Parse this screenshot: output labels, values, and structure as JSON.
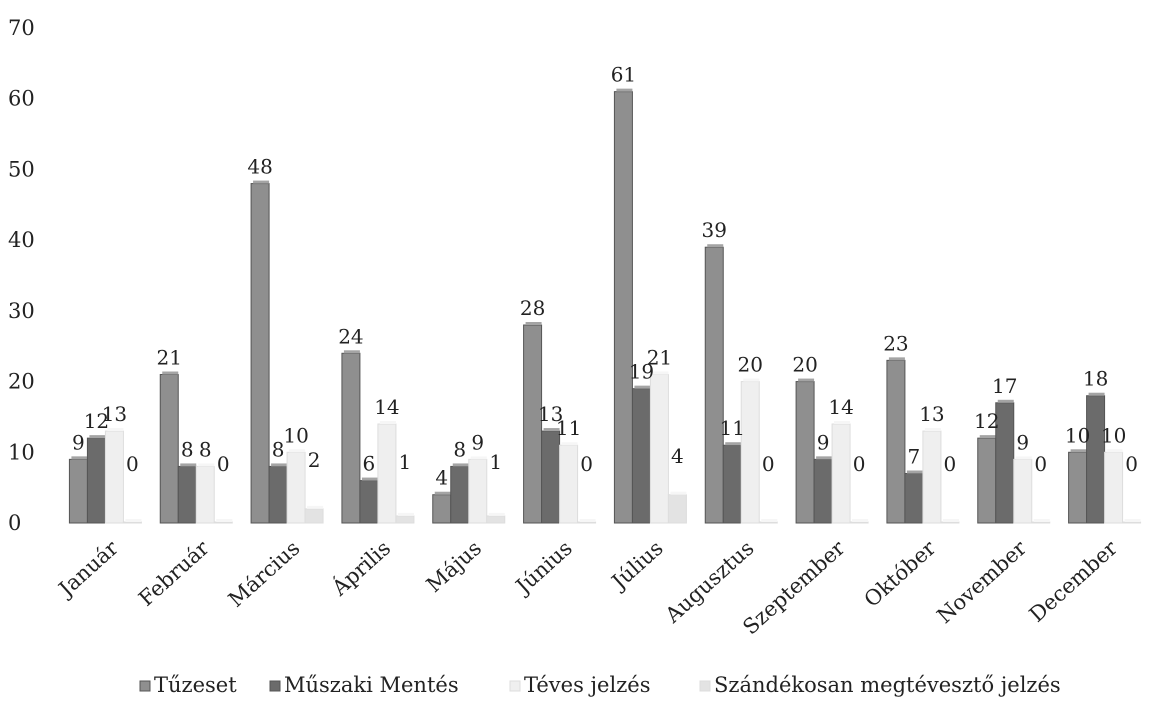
{
  "chart_data": {
    "type": "bar",
    "title": "",
    "xlabel": "",
    "ylabel": "",
    "ylim": [
      0,
      70
    ],
    "yticks": [
      0,
      10,
      20,
      30,
      40,
      50,
      60,
      70
    ],
    "grid": false,
    "legend_position": "bottom",
    "categories": [
      "Január",
      "Február",
      "Március",
      "Április",
      "Május",
      "Június",
      "Július",
      "Augusztus",
      "Szeptember",
      "Október",
      "November",
      "December"
    ],
    "series": [
      {
        "name": "Tűzeset",
        "color": "#8f8f8f",
        "values": [
          9,
          21,
          48,
          24,
          4,
          28,
          61,
          39,
          20,
          23,
          12,
          10
        ]
      },
      {
        "name": "Műszaki Mentés",
        "color": "#6b6b6b",
        "values": [
          12,
          8,
          8,
          6,
          8,
          13,
          19,
          11,
          9,
          7,
          17,
          18
        ]
      },
      {
        "name": "Téves jelzés",
        "color": "#efefef",
        "values": [
          13,
          8,
          10,
          14,
          9,
          11,
          21,
          20,
          14,
          13,
          9,
          10
        ]
      },
      {
        "name": "Szándékosan megtévesztő jelzés",
        "color": "#e3e3e3",
        "values": [
          0,
          0,
          2,
          1,
          1,
          0,
          4,
          0,
          0,
          0,
          0,
          0
        ]
      }
    ]
  }
}
